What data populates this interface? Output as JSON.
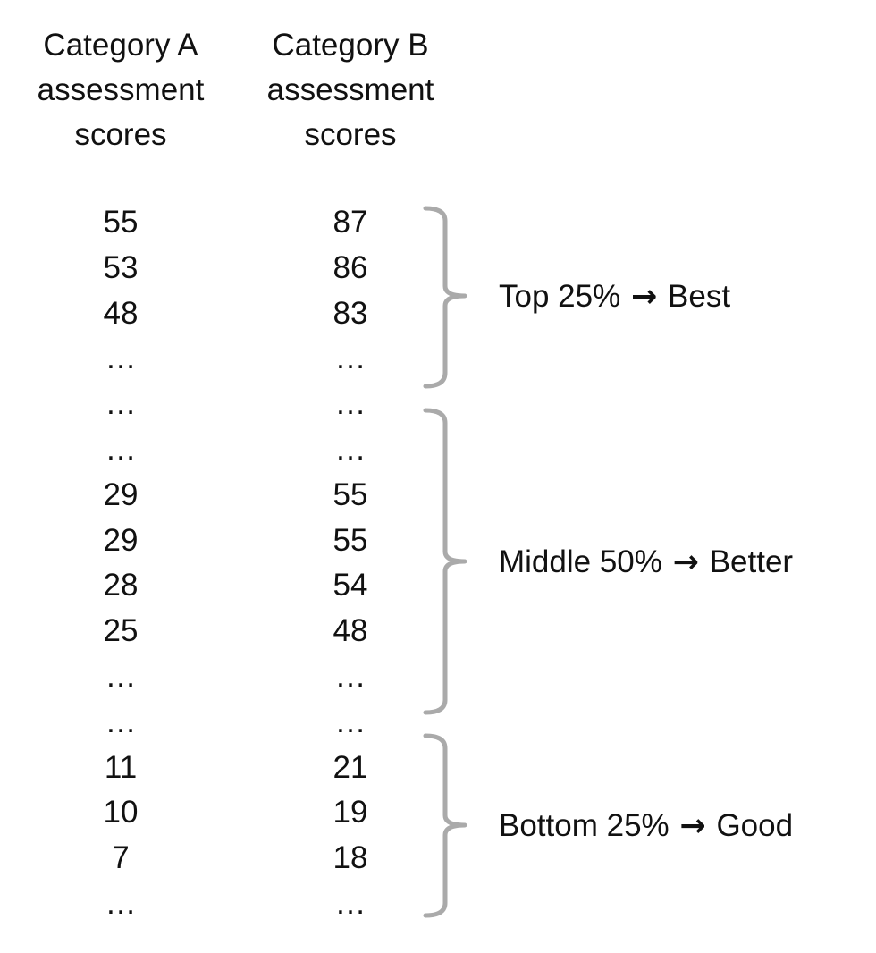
{
  "headers": {
    "category_a": [
      "Category A",
      "assessment",
      "scores"
    ],
    "category_b": [
      "Category B",
      "assessment",
      "scores"
    ]
  },
  "rows": [
    {
      "a": "55",
      "b": "87"
    },
    {
      "a": "53",
      "b": "86"
    },
    {
      "a": "48",
      "b": "83"
    },
    {
      "a": "…",
      "b": "…"
    },
    {
      "a": "…",
      "b": "…"
    },
    {
      "a": "…",
      "b": "…"
    },
    {
      "a": "29",
      "b": "55"
    },
    {
      "a": "29",
      "b": "55"
    },
    {
      "a": "28",
      "b": "54"
    },
    {
      "a": "25",
      "b": "48"
    },
    {
      "a": "…",
      "b": "…"
    },
    {
      "a": "…",
      "b": "…"
    },
    {
      "a": "11",
      "b": "21"
    },
    {
      "a": "10",
      "b": "19"
    },
    {
      "a": "7",
      "b": "18"
    },
    {
      "a": "…",
      "b": "…"
    }
  ],
  "groups": [
    {
      "prefix": "Top 25%",
      "arrow": "→",
      "suffix": "Best"
    },
    {
      "prefix": "Middle 50%",
      "arrow": "→",
      "suffix": "Better"
    },
    {
      "prefix": "Bottom 25%",
      "arrow": "→",
      "suffix": "Good"
    }
  ],
  "colors": {
    "text": "#111111",
    "bracket": "#aaaaaa",
    "background": "#ffffff"
  }
}
